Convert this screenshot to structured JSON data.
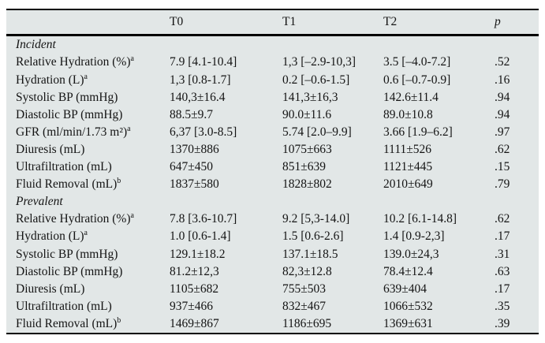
{
  "colors": {
    "table_bg": "#e2e7e7",
    "rule": "#000000",
    "text": "#141414"
  },
  "table": {
    "columns": [
      "",
      "T0",
      "T1",
      "T2",
      "p"
    ],
    "sections": [
      {
        "title": "Incident",
        "rows": [
          {
            "label": "Relative Hydration (%)",
            "sup": "a",
            "t0": "7.9 [4.1-10.4]",
            "t1": "1,3 [–2.9-10,3]",
            "t2": "3.5 [–4.0-7.2]",
            "p": ".52"
          },
          {
            "label": "Hydration (L)",
            "sup": "a",
            "t0": "1,3 [0.8-1.7]",
            "t1": "0.2 [–0.6-1.5]",
            "t2": "0.6 [–0.7-0.9]",
            "p": ".16"
          },
          {
            "label": "Systolic BP (mmHg)",
            "sup": "",
            "t0": "140,3±16.4",
            "t1": "141,3±16,3",
            "t2": "142.6±11.4",
            "p": ".94"
          },
          {
            "label": "Diastolic BP (mmHg)",
            "sup": "",
            "t0": "88.5±9.7",
            "t1": "90.0±11.6",
            "t2": "89.0±10.8",
            "p": ".94"
          },
          {
            "label": "GFR (ml/min/1.73 m²)",
            "sup": "a",
            "t0": "6,37 [3.0-8.5]",
            "t1": "5.74 [2.0–9.9]",
            "t2": "3.66 [1.9–6.2]",
            "p": ".97"
          },
          {
            "label": "Diuresis (mL)",
            "sup": "",
            "t0": "1370±886",
            "t1": "1075±663",
            "t2": "1111±526",
            "p": ".62"
          },
          {
            "label": "Ultrafiltration (mL)",
            "sup": "",
            "t0": "647±450",
            "t1": "851±639",
            "t2": "1121±445",
            "p": ".15"
          },
          {
            "label": "Fluid Removal (mL)",
            "sup": "b",
            "t0": "1837±580",
            "t1": "1828±802",
            "t2": "2010±649",
            "p": ".79"
          }
        ]
      },
      {
        "title": "Prevalent",
        "rows": [
          {
            "label": "Relative Hydration (%)",
            "sup": "a",
            "t0": "7.8 [3.6-10.7]",
            "t1": "9.2 [5,3-14.0]",
            "t2": "10.2 [6.1-14.8]",
            "p": ".62"
          },
          {
            "label": "Hydration (L)",
            "sup": "a",
            "t0": "1.0 [0.6-1.4]",
            "t1": "1.5 [0.6-2.6]",
            "t2": "1.4 [0.9-2,3]",
            "p": ".17"
          },
          {
            "label": "Systolic BP (mmHg)",
            "sup": "",
            "t0": "129.1±18.2",
            "t1": "137.1±18.5",
            "t2": "139.0±24,3",
            "p": ".31"
          },
          {
            "label": "Diastolic BP (mmHg)",
            "sup": "",
            "t0": "81.2±12,3",
            "t1": "82,3±12.8",
            "t2": "78.4±12.4",
            "p": ".63"
          },
          {
            "label": "Diuresis (mL)",
            "sup": "",
            "t0": "1105±682",
            "t1": "755±503",
            "t2": "639±404",
            "p": ".17"
          },
          {
            "label": "Ultrafiltration (mL)",
            "sup": "",
            "t0": "937±466",
            "t1": "832±467",
            "t2": "1066±532",
            "p": ".35"
          },
          {
            "label": "Fluid Removal (mL)",
            "sup": "b",
            "t0": "1469±867",
            "t1": "1186±695",
            "t2": "1369±631",
            "p": ".39"
          }
        ]
      }
    ]
  }
}
